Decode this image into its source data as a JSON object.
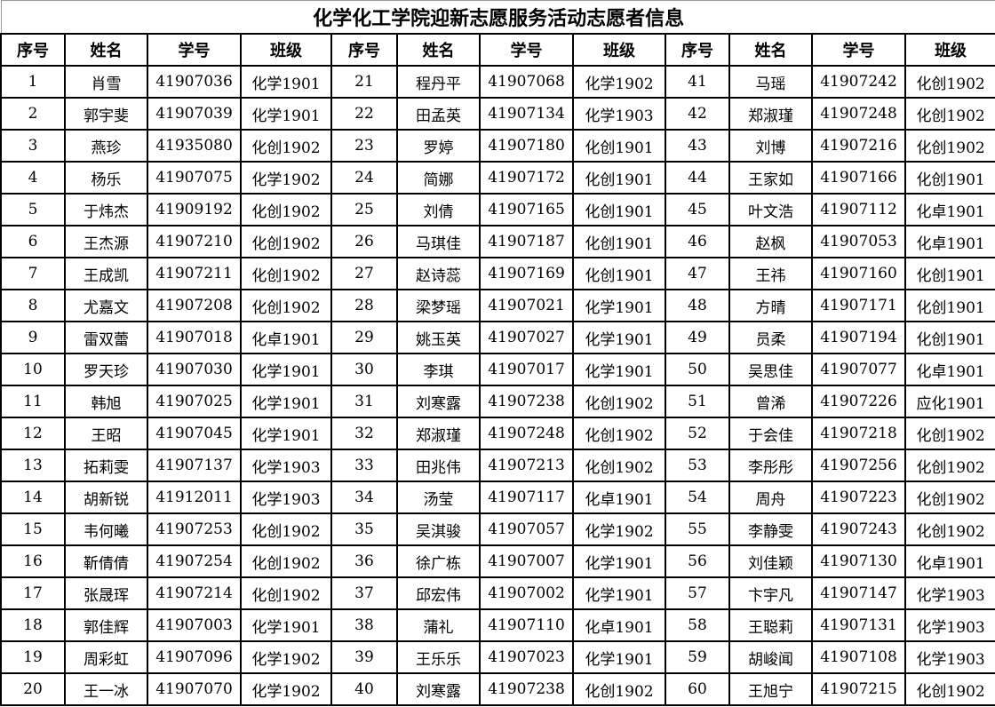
{
  "title": "化学化工学院迎新志愿服务活动志愿者信息",
  "headers": [
    "序号",
    "姓名",
    "学号",
    "班级"
  ],
  "records": [
    {
      "no": "1",
      "name": "肖雪",
      "id": "41907036",
      "class": "化学1901"
    },
    {
      "no": "2",
      "name": "郭宇斐",
      "id": "41907039",
      "class": "化学1901"
    },
    {
      "no": "3",
      "name": "燕珍",
      "id": "41935080",
      "class": "化创1902"
    },
    {
      "no": "4",
      "name": "杨乐",
      "id": "41907075",
      "class": "化学1902"
    },
    {
      "no": "5",
      "name": "于炜杰",
      "id": "41909192",
      "class": "化创1902"
    },
    {
      "no": "6",
      "name": "王杰源",
      "id": "41907210",
      "class": "化创1902"
    },
    {
      "no": "7",
      "name": "王成凯",
      "id": "41907211",
      "class": "化创1902"
    },
    {
      "no": "8",
      "name": "尤嘉文",
      "id": "41907208",
      "class": "化创1902"
    },
    {
      "no": "9",
      "name": "雷双蕾",
      "id": "41907018",
      "class": "化卓1901"
    },
    {
      "no": "10",
      "name": "罗天珍",
      "id": "41907030",
      "class": "化学1901"
    },
    {
      "no": "11",
      "name": "韩旭",
      "id": "41907025",
      "class": "化学1901"
    },
    {
      "no": "12",
      "name": "王昭",
      "id": "41907045",
      "class": "化学1901"
    },
    {
      "no": "13",
      "name": "拓莉雯",
      "id": "41907137",
      "class": "化学1903"
    },
    {
      "no": "14",
      "name": "胡新锐",
      "id": "41912011",
      "class": "化学1903"
    },
    {
      "no": "15",
      "name": "韦何曦",
      "id": "41907253",
      "class": "化创1902"
    },
    {
      "no": "16",
      "name": "靳倩倩",
      "id": "41907254",
      "class": "化创1902"
    },
    {
      "no": "17",
      "name": "张晟珲",
      "id": "41907214",
      "class": "化创1902"
    },
    {
      "no": "18",
      "name": "郭佳辉",
      "id": "41907003",
      "class": "化学1901"
    },
    {
      "no": "19",
      "name": "周彩虹",
      "id": "41907096",
      "class": "化学1902"
    },
    {
      "no": "20",
      "name": "王一冰",
      "id": "41907070",
      "class": "化学1902"
    },
    {
      "no": "21",
      "name": "程丹平",
      "id": "41907068",
      "class": "化学1902"
    },
    {
      "no": "22",
      "name": "田孟英",
      "id": "41907134",
      "class": "化学1903"
    },
    {
      "no": "23",
      "name": "罗婷",
      "id": "41907180",
      "class": "化创1901"
    },
    {
      "no": "24",
      "name": "简娜",
      "id": "41907172",
      "class": "化创1901"
    },
    {
      "no": "25",
      "name": "刘倩",
      "id": "41907165",
      "class": "化创1901"
    },
    {
      "no": "26",
      "name": "马琪佳",
      "id": "41907187",
      "class": "化创1901"
    },
    {
      "no": "27",
      "name": "赵诗蕊",
      "id": "41907169",
      "class": "化创1901"
    },
    {
      "no": "28",
      "name": "梁梦瑶",
      "id": "41907021",
      "class": "化学1901"
    },
    {
      "no": "29",
      "name": "姚玉英",
      "id": "41907027",
      "class": "化学1901"
    },
    {
      "no": "30",
      "name": "李琪",
      "id": "41907017",
      "class": "化学1901"
    },
    {
      "no": "31",
      "name": "刘寒露",
      "id": "41907238",
      "class": "化创1902"
    },
    {
      "no": "32",
      "name": "郑淑瑾",
      "id": "41907248",
      "class": "化创1902"
    },
    {
      "no": "33",
      "name": "田兆伟",
      "id": "41907213",
      "class": "化创1902"
    },
    {
      "no": "34",
      "name": "汤莹",
      "id": "41907117",
      "class": "化卓1901"
    },
    {
      "no": "35",
      "name": "吴淇骏",
      "id": "41907057",
      "class": "化学1902"
    },
    {
      "no": "36",
      "name": "徐广栋",
      "id": "41907007",
      "class": "化学1901"
    },
    {
      "no": "37",
      "name": "邱宏伟",
      "id": "41907002",
      "class": "化学1901"
    },
    {
      "no": "38",
      "name": "蒲礼",
      "id": "41907110",
      "class": "化卓1901"
    },
    {
      "no": "39",
      "name": "王乐乐",
      "id": "41907023",
      "class": "化学1901"
    },
    {
      "no": "40",
      "name": "刘寒露",
      "id": "41907238",
      "class": "化创1902"
    },
    {
      "no": "41",
      "name": "马瑶",
      "id": "41907242",
      "class": "化创1902"
    },
    {
      "no": "42",
      "name": "郑淑瑾",
      "id": "41907248",
      "class": "化创1902"
    },
    {
      "no": "43",
      "name": "刘博",
      "id": "41907216",
      "class": "化创1902"
    },
    {
      "no": "44",
      "name": "王家如",
      "id": "41907166",
      "class": "化创1901"
    },
    {
      "no": "45",
      "name": "叶文浩",
      "id": "41907112",
      "class": "化卓1901"
    },
    {
      "no": "46",
      "name": "赵枫",
      "id": "41907053",
      "class": "化卓1901"
    },
    {
      "no": "47",
      "name": "王祎",
      "id": "41907160",
      "class": "化创1901"
    },
    {
      "no": "48",
      "name": "方晴",
      "id": "41907171",
      "class": "化创1901"
    },
    {
      "no": "49",
      "name": "员柔",
      "id": "41907194",
      "class": "化创1901"
    },
    {
      "no": "50",
      "name": "吴思佳",
      "id": "41907077",
      "class": "化卓1901"
    },
    {
      "no": "51",
      "name": "曾浠",
      "id": "41907226",
      "class": "应化1901"
    },
    {
      "no": "52",
      "name": "于会佳",
      "id": "41907218",
      "class": "化创1902"
    },
    {
      "no": "53",
      "name": "李彤彤",
      "id": "41907256",
      "class": "化创1902"
    },
    {
      "no": "54",
      "name": "周舟",
      "id": "41907223",
      "class": "化创1902"
    },
    {
      "no": "55",
      "name": "李静雯",
      "id": "41907243",
      "class": "化创1902"
    },
    {
      "no": "56",
      "name": "刘佳颖",
      "id": "41907130",
      "class": "化卓1901"
    },
    {
      "no": "57",
      "name": "卞宇凡",
      "id": "41907147",
      "class": "化学1903"
    },
    {
      "no": "58",
      "name": "王聪莉",
      "id": "41907131",
      "class": "化学1903"
    },
    {
      "no": "59",
      "name": "胡峻闻",
      "id": "41907108",
      "class": "化学1903"
    },
    {
      "no": "60",
      "name": "王旭宁",
      "id": "41907215",
      "class": "化创1902"
    }
  ]
}
